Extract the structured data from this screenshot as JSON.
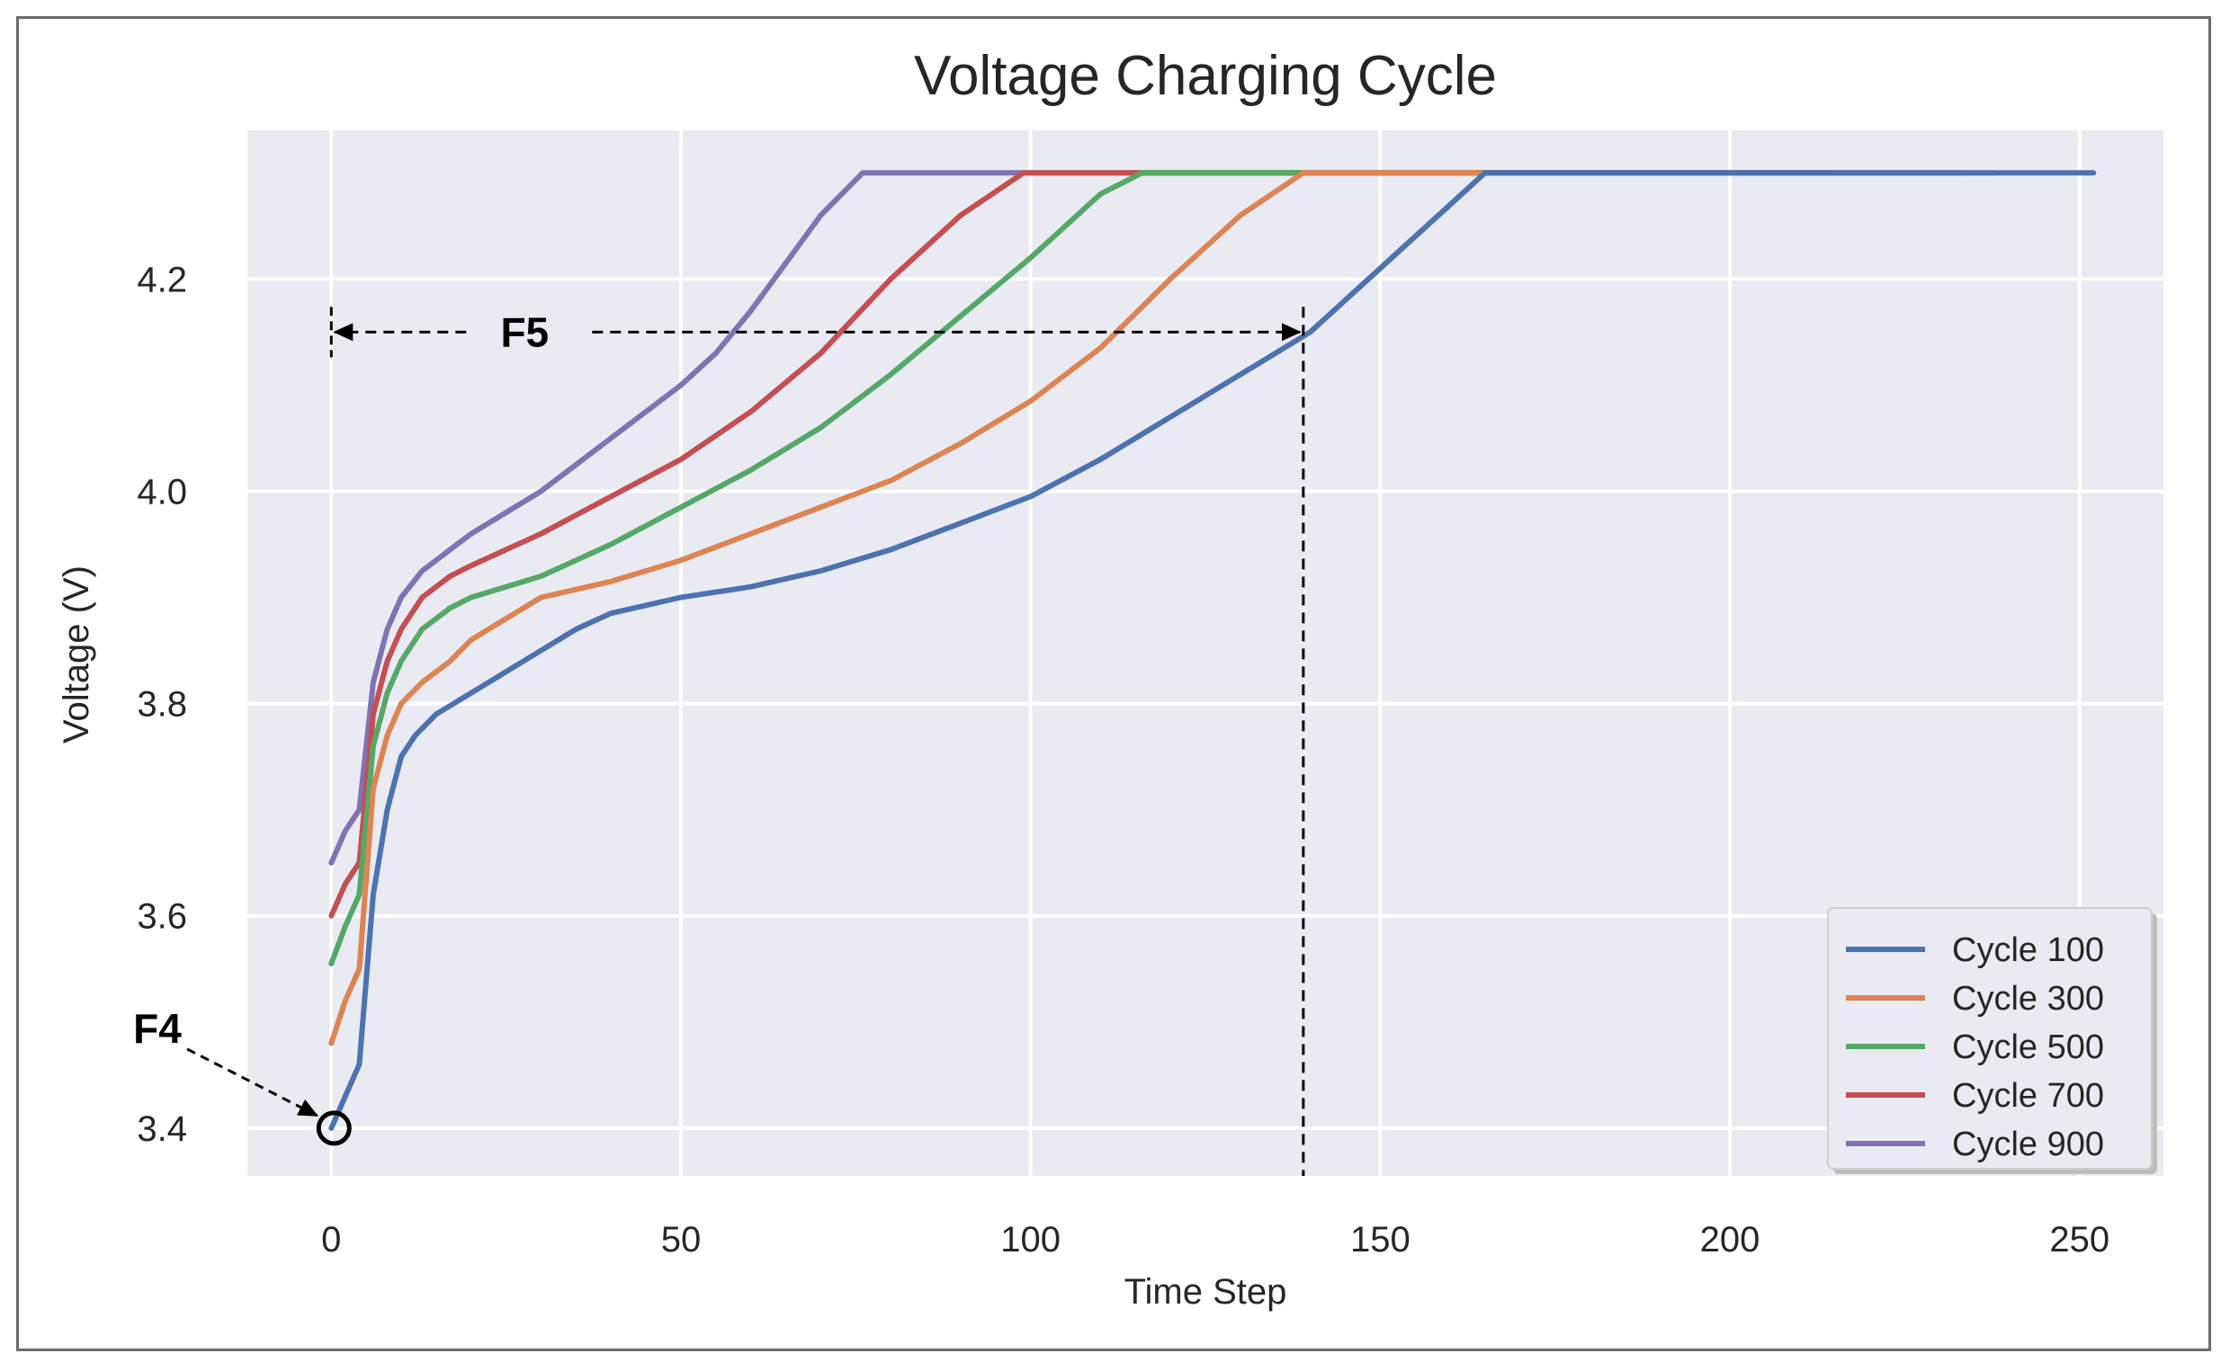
{
  "chart_data": {
    "type": "line",
    "title": "Voltage Charging Cycle",
    "xlabel": "Time Step",
    "ylabel": "Voltage (V)",
    "xlim": [
      -12,
      262
    ],
    "ylim": [
      3.355,
      4.34
    ],
    "xticks": [
      0,
      50,
      100,
      150,
      200,
      250
    ],
    "xtick_labels": [
      "0",
      "50",
      "100",
      "150",
      "200",
      "250"
    ],
    "yticks": [
      3.4,
      3.6,
      3.8,
      4.0,
      4.2
    ],
    "ytick_labels": [
      "3.4",
      "3.6",
      "3.8",
      "4.0",
      "4.2"
    ],
    "grid": true,
    "legend_position": "lower-right",
    "series": [
      {
        "name": "Cycle 100",
        "color": "#4c72b0",
        "x": [
          0,
          4,
          6,
          8,
          10,
          12,
          15,
          20,
          25,
          30,
          35,
          40,
          50,
          60,
          70,
          80,
          90,
          100,
          110,
          120,
          130,
          140,
          150,
          160,
          165,
          252
        ],
        "y": [
          3.4,
          3.46,
          3.62,
          3.7,
          3.75,
          3.77,
          3.79,
          3.81,
          3.83,
          3.85,
          3.87,
          3.885,
          3.9,
          3.91,
          3.925,
          3.945,
          3.97,
          3.995,
          4.03,
          4.07,
          4.11,
          4.15,
          4.21,
          4.27,
          4.3,
          4.3
        ]
      },
      {
        "name": "Cycle 300",
        "color": "#dd8452",
        "x": [
          0,
          2,
          4,
          6,
          8,
          10,
          13,
          17,
          20,
          25,
          30,
          40,
          50,
          60,
          70,
          80,
          90,
          100,
          110,
          120,
          130,
          139,
          238
        ],
        "y": [
          3.48,
          3.52,
          3.55,
          3.72,
          3.77,
          3.8,
          3.82,
          3.84,
          3.86,
          3.88,
          3.9,
          3.915,
          3.935,
          3.96,
          3.985,
          4.01,
          4.045,
          4.085,
          4.135,
          4.2,
          4.26,
          4.3,
          4.3
        ]
      },
      {
        "name": "Cycle 500",
        "color": "#55a868",
        "x": [
          0,
          2,
          4,
          6,
          8,
          10,
          13,
          17,
          20,
          25,
          30,
          40,
          50,
          60,
          70,
          80,
          90,
          100,
          110,
          116,
          233
        ],
        "y": [
          3.555,
          3.59,
          3.62,
          3.76,
          3.81,
          3.84,
          3.87,
          3.89,
          3.9,
          3.91,
          3.92,
          3.95,
          3.985,
          4.02,
          4.06,
          4.11,
          4.165,
          4.22,
          4.28,
          4.3,
          4.3
        ]
      },
      {
        "name": "Cycle 700",
        "color": "#c44e52",
        "x": [
          0,
          2,
          4,
          6,
          8,
          10,
          13,
          17,
          20,
          25,
          30,
          40,
          50,
          60,
          70,
          80,
          90,
          99,
          223
        ],
        "y": [
          3.6,
          3.63,
          3.65,
          3.79,
          3.84,
          3.87,
          3.9,
          3.92,
          3.93,
          3.945,
          3.96,
          3.995,
          4.03,
          4.075,
          4.13,
          4.2,
          4.26,
          4.3,
          4.3
        ]
      },
      {
        "name": "Cycle 900",
        "color": "#8172b3",
        "x": [
          0,
          2,
          4,
          6,
          8,
          10,
          13,
          17,
          20,
          25,
          30,
          40,
          50,
          55,
          60,
          65,
          70,
          76,
          215
        ],
        "y": [
          3.65,
          3.68,
          3.7,
          3.82,
          3.87,
          3.9,
          3.925,
          3.945,
          3.96,
          3.98,
          4.0,
          4.05,
          4.1,
          4.13,
          4.17,
          4.215,
          4.26,
          4.3,
          4.3
        ]
      }
    ],
    "annotations": [
      {
        "label": "F5",
        "type": "interval",
        "x_start": 0,
        "x_end": 139,
        "y": 4.15
      },
      {
        "label": "F4",
        "type": "point",
        "x": 0,
        "y": 3.4
      }
    ]
  }
}
